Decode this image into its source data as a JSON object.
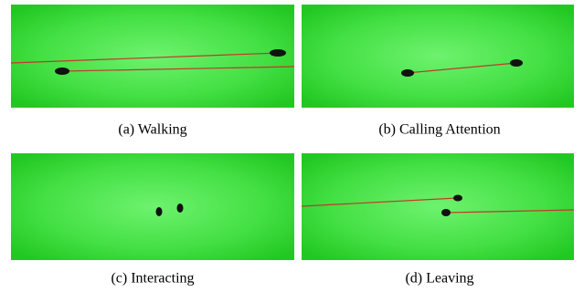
{
  "figures": [
    {
      "caption": "(a) Walking"
    },
    {
      "caption": "(b) Calling Attention"
    },
    {
      "caption": "(c) Interacting"
    },
    {
      "caption": "(d) Leaving"
    }
  ]
}
